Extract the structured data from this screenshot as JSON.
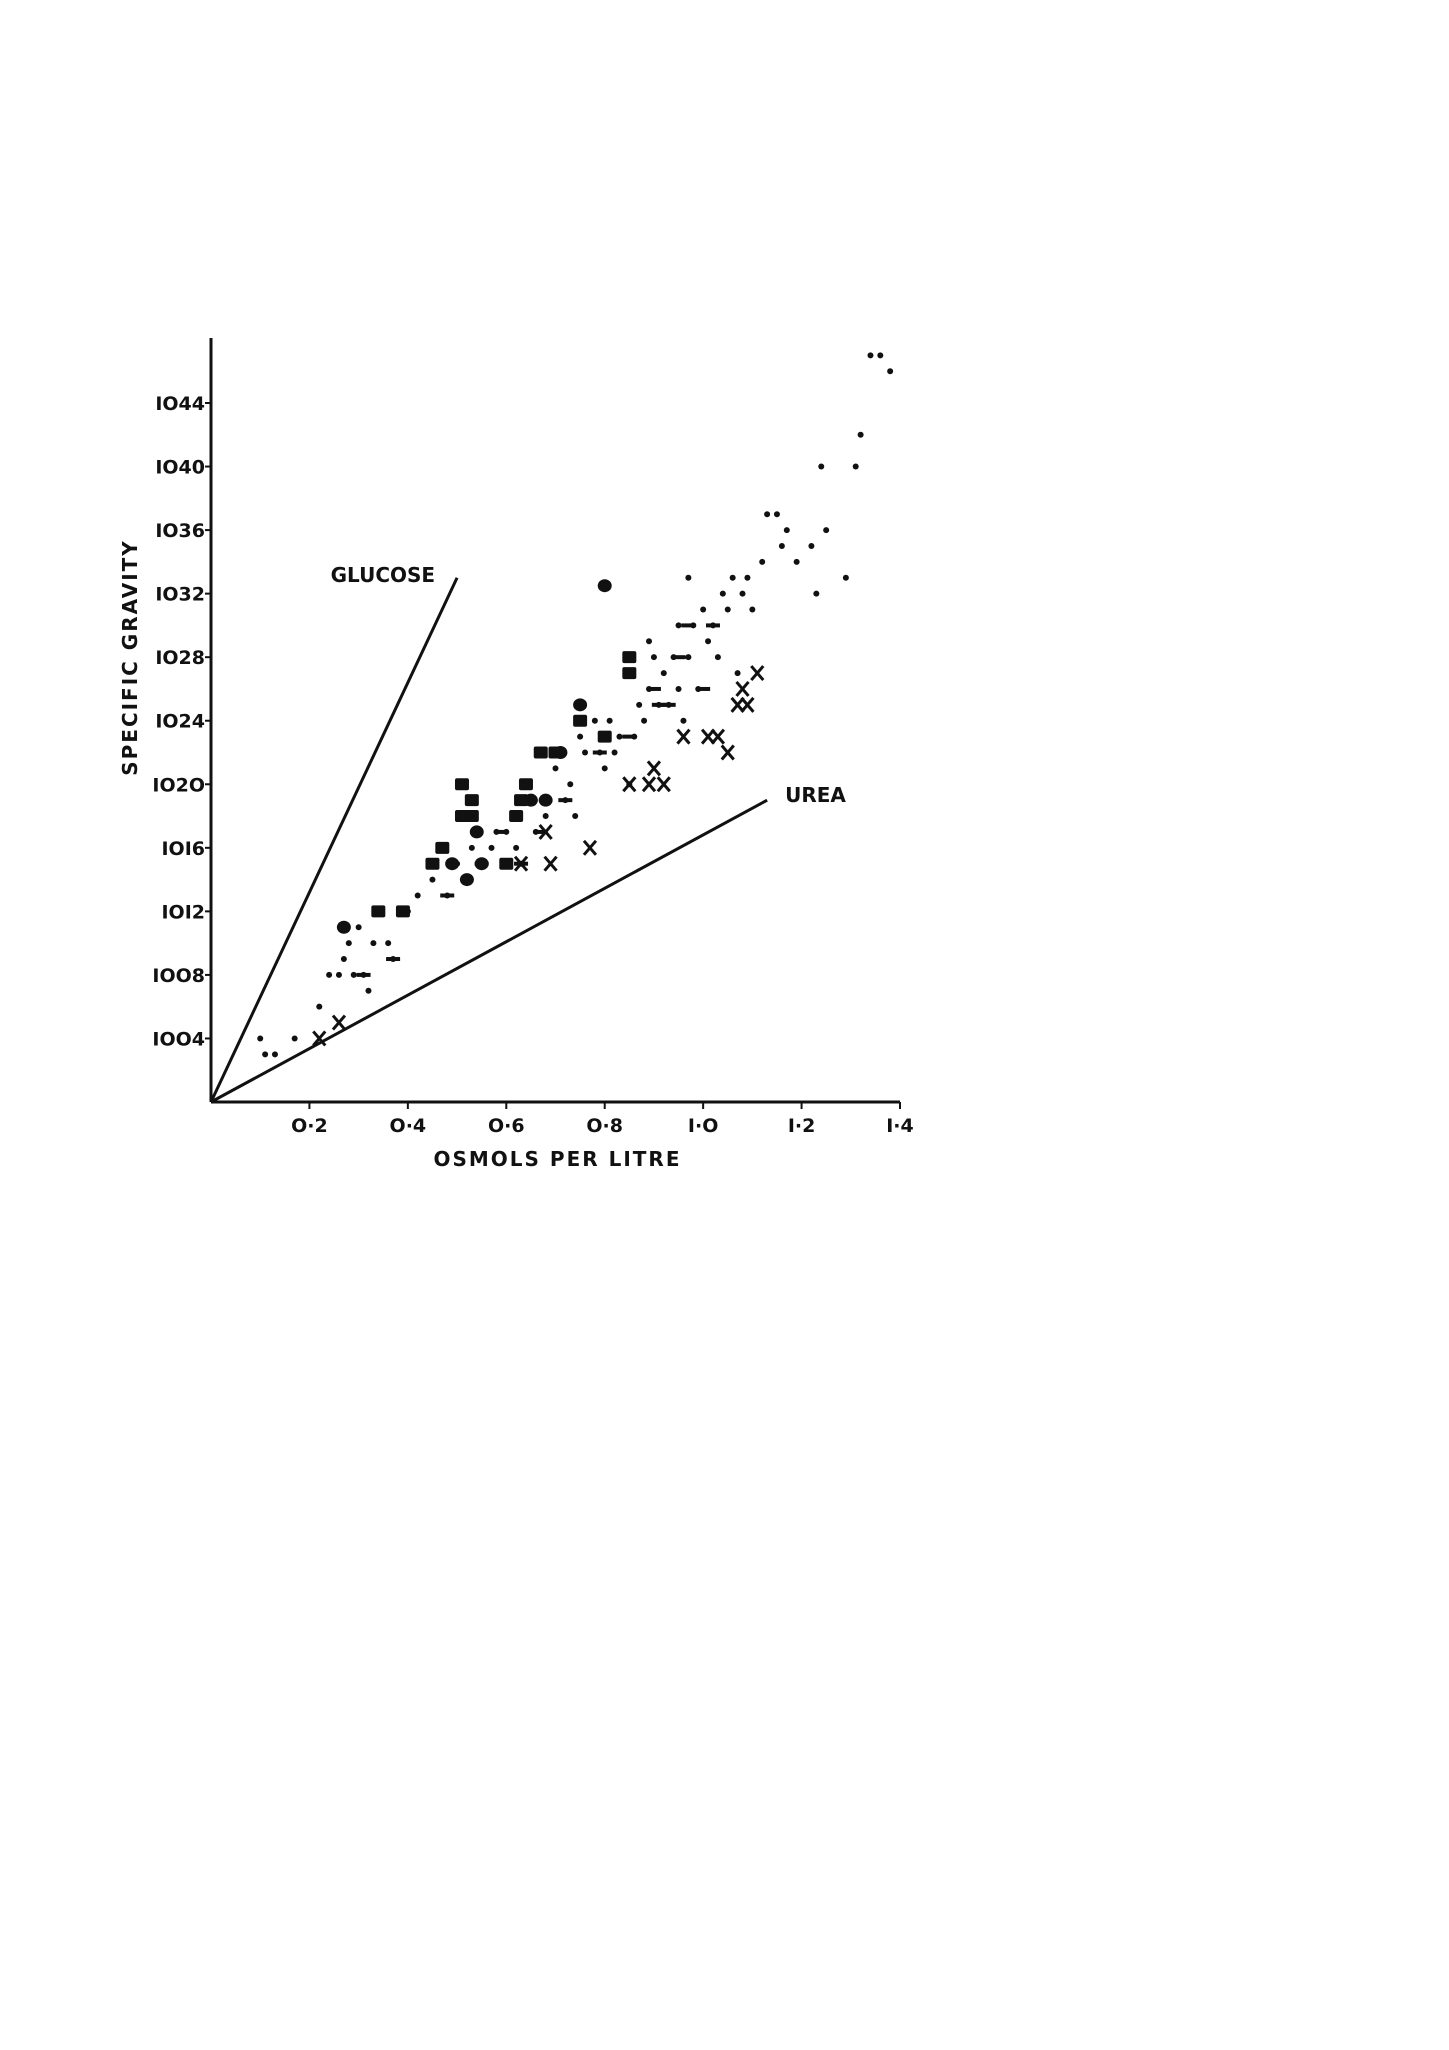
{
  "chart_data": {
    "type": "scatter",
    "title": "",
    "xlabel": "OSMOLS  PER  LITRE",
    "ylabel": "SPECIFIC  GRAVITY",
    "xlim": [
      0,
      1.4
    ],
    "ylim": [
      1000,
      1048
    ],
    "grid": false,
    "legend": "none",
    "x_ticks": [
      {
        "value": 0.2,
        "label": "O·2"
      },
      {
        "value": 0.4,
        "label": "O·4"
      },
      {
        "value": 0.6,
        "label": "O·6"
      },
      {
        "value": 0.8,
        "label": "O·8"
      },
      {
        "value": 1.0,
        "label": "I·O"
      },
      {
        "value": 1.2,
        "label": "I·2"
      },
      {
        "value": 1.4,
        "label": "I·4"
      }
    ],
    "y_ticks": [
      {
        "value": 1004,
        "label": "IOO4"
      },
      {
        "value": 1008,
        "label": "IOO8"
      },
      {
        "value": 1012,
        "label": "IOI2"
      },
      {
        "value": 1016,
        "label": "IOI6"
      },
      {
        "value": 1020,
        "label": "IO2O"
      },
      {
        "value": 1024,
        "label": "IO24"
      },
      {
        "value": 1028,
        "label": "IO28"
      },
      {
        "value": 1032,
        "label": "IO32"
      },
      {
        "value": 1036,
        "label": "IO36"
      },
      {
        "value": 1040,
        "label": "IO40"
      },
      {
        "value": 1044,
        "label": "IO44"
      }
    ],
    "reference_lines": [
      {
        "label": "GLUCOSE",
        "from": [
          0,
          1000
        ],
        "to": [
          0.5,
          1033
        ]
      },
      {
        "label": "UREA",
        "from": [
          0,
          1000
        ],
        "to": [
          1.13,
          1019
        ]
      }
    ],
    "series": [
      {
        "marker": "small-dot",
        "points": [
          [
            0.1,
            1004
          ],
          [
            0.11,
            1003
          ],
          [
            0.13,
            1003
          ],
          [
            0.17,
            1004
          ],
          [
            0.22,
            1006
          ],
          [
            0.24,
            1008
          ],
          [
            0.26,
            1008
          ],
          [
            0.27,
            1009
          ],
          [
            0.28,
            1010
          ],
          [
            0.29,
            1008
          ],
          [
            0.3,
            1011
          ],
          [
            0.31,
            1008
          ],
          [
            0.32,
            1007
          ],
          [
            0.33,
            1010
          ],
          [
            0.36,
            1010
          ],
          [
            0.37,
            1009
          ],
          [
            0.4,
            1012
          ],
          [
            0.42,
            1013
          ],
          [
            0.45,
            1014
          ],
          [
            0.48,
            1013
          ],
          [
            0.5,
            1015
          ],
          [
            0.52,
            1014
          ],
          [
            0.53,
            1016
          ],
          [
            0.55,
            1015
          ],
          [
            0.57,
            1016
          ],
          [
            0.58,
            1017
          ],
          [
            0.6,
            1017
          ],
          [
            0.62,
            1016
          ],
          [
            0.63,
            1015
          ],
          [
            0.66,
            1017
          ],
          [
            0.68,
            1018
          ],
          [
            0.7,
            1021
          ],
          [
            0.72,
            1019
          ],
          [
            0.73,
            1020
          ],
          [
            0.74,
            1018
          ],
          [
            0.75,
            1023
          ],
          [
            0.76,
            1022
          ],
          [
            0.78,
            1024
          ],
          [
            0.79,
            1022
          ],
          [
            0.8,
            1021
          ],
          [
            0.81,
            1024
          ],
          [
            0.82,
            1022
          ],
          [
            0.83,
            1023
          ],
          [
            0.85,
            1020
          ],
          [
            0.86,
            1023
          ],
          [
            0.87,
            1025
          ],
          [
            0.88,
            1024
          ],
          [
            0.89,
            1026
          ],
          [
            0.89,
            1029
          ],
          [
            0.9,
            1028
          ],
          [
            0.91,
            1025
          ],
          [
            0.92,
            1027
          ],
          [
            0.93,
            1025
          ],
          [
            0.94,
            1028
          ],
          [
            0.95,
            1026
          ],
          [
            0.95,
            1030
          ],
          [
            0.96,
            1024
          ],
          [
            0.97,
            1028
          ],
          [
            0.97,
            1033
          ],
          [
            0.98,
            1030
          ],
          [
            0.99,
            1026
          ],
          [
            1.0,
            1031
          ],
          [
            1.01,
            1029
          ],
          [
            1.02,
            1030
          ],
          [
            1.03,
            1028
          ],
          [
            1.04,
            1032
          ],
          [
            1.05,
            1031
          ],
          [
            1.06,
            1033
          ],
          [
            1.07,
            1027
          ],
          [
            1.08,
            1032
          ],
          [
            1.09,
            1033
          ],
          [
            1.1,
            1031
          ],
          [
            1.12,
            1034
          ],
          [
            1.13,
            1037
          ],
          [
            1.15,
            1037
          ],
          [
            1.16,
            1035
          ],
          [
            1.17,
            1036
          ],
          [
            1.19,
            1034
          ],
          [
            1.22,
            1035
          ],
          [
            1.23,
            1032
          ],
          [
            1.24,
            1040
          ],
          [
            1.25,
            1036
          ],
          [
            1.29,
            1033
          ],
          [
            1.31,
            1040
          ],
          [
            1.32,
            1042
          ],
          [
            1.34,
            1047
          ],
          [
            1.36,
            1047
          ],
          [
            1.38,
            1046
          ]
        ]
      },
      {
        "marker": "dash",
        "points": [
          [
            0.31,
            1008
          ],
          [
            0.37,
            1009
          ],
          [
            0.48,
            1013
          ],
          [
            0.55,
            1015
          ],
          [
            0.59,
            1017
          ],
          [
            0.63,
            1015
          ],
          [
            0.67,
            1017
          ],
          [
            0.72,
            1019
          ],
          [
            0.79,
            1022
          ],
          [
            0.85,
            1023
          ],
          [
            0.9,
            1026
          ],
          [
            0.91,
            1025
          ],
          [
            0.93,
            1025
          ],
          [
            0.95,
            1028
          ],
          [
            0.97,
            1030
          ],
          [
            1.0,
            1026
          ],
          [
            1.02,
            1030
          ]
        ]
      },
      {
        "marker": "large-dot",
        "points": [
          [
            0.27,
            1011
          ],
          [
            0.49,
            1015
          ],
          [
            0.52,
            1014
          ],
          [
            0.54,
            1017
          ],
          [
            0.55,
            1015
          ],
          [
            0.65,
            1019
          ],
          [
            0.68,
            1019
          ],
          [
            0.71,
            1022
          ],
          [
            0.75,
            1025
          ],
          [
            0.8,
            1032.5
          ]
        ]
      },
      {
        "marker": "square",
        "points": [
          [
            0.34,
            1012
          ],
          [
            0.39,
            1012
          ],
          [
            0.45,
            1015
          ],
          [
            0.47,
            1016
          ],
          [
            0.51,
            1018
          ],
          [
            0.51,
            1020
          ],
          [
            0.53,
            1019
          ],
          [
            0.53,
            1018
          ],
          [
            0.6,
            1015
          ],
          [
            0.62,
            1018
          ],
          [
            0.63,
            1019
          ],
          [
            0.64,
            1020
          ],
          [
            0.67,
            1022
          ],
          [
            0.7,
            1022
          ],
          [
            0.75,
            1024
          ],
          [
            0.8,
            1023
          ],
          [
            0.85,
            1028
          ],
          [
            0.85,
            1027
          ]
        ]
      },
      {
        "marker": "cross",
        "points": [
          [
            0.22,
            1004
          ],
          [
            0.26,
            1005
          ],
          [
            0.63,
            1015
          ],
          [
            0.68,
            1017
          ],
          [
            0.69,
            1015
          ],
          [
            0.77,
            1016
          ],
          [
            0.85,
            1020
          ],
          [
            0.89,
            1020
          ],
          [
            0.9,
            1021
          ],
          [
            0.92,
            1020
          ],
          [
            0.96,
            1023
          ],
          [
            1.01,
            1023
          ],
          [
            1.03,
            1023
          ],
          [
            1.05,
            1022
          ],
          [
            1.07,
            1025
          ],
          [
            1.08,
            1026
          ],
          [
            1.09,
            1025
          ],
          [
            1.11,
            1027
          ]
        ]
      }
    ],
    "annotations": [
      "GLUCOSE",
      "UREA"
    ]
  }
}
